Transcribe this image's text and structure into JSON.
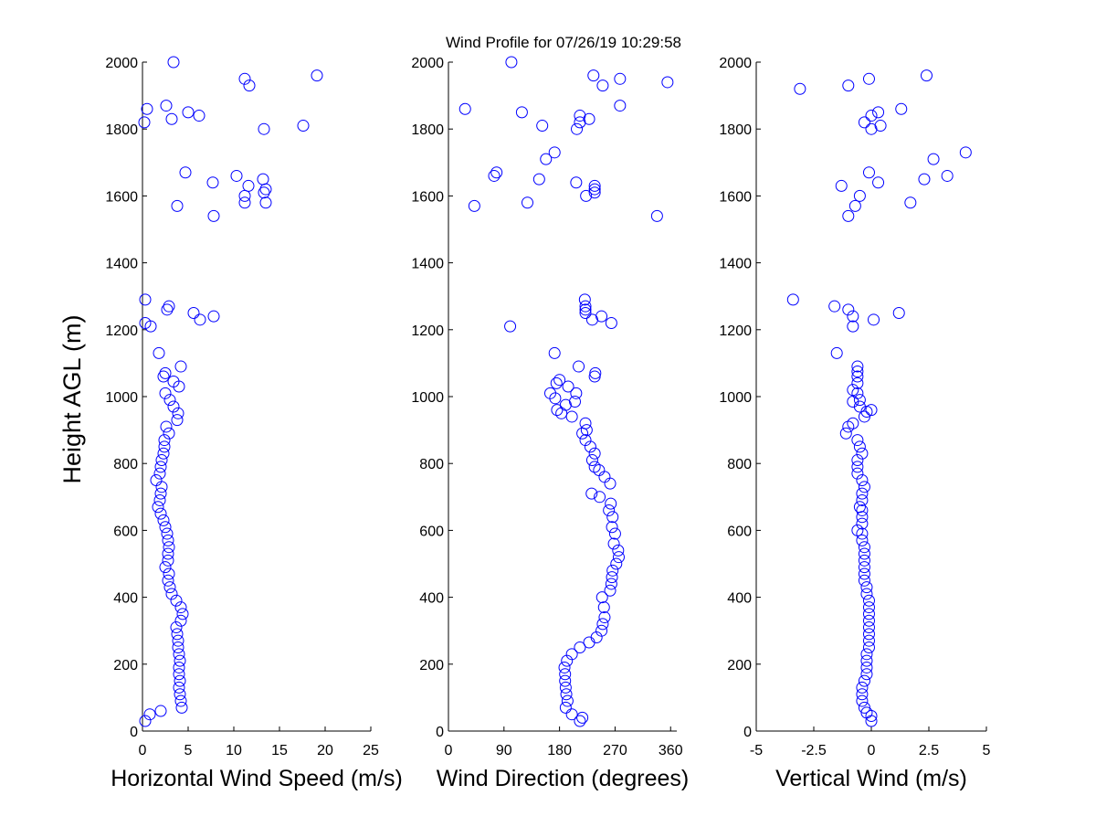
{
  "title": "Wind Profile for  07/26/19 10:29:58",
  "ylabel": "Height AGL (m)",
  "colors": {
    "marker": "#0000ff",
    "axis": "#000000",
    "background": "#ffffff"
  },
  "chart_data": [
    {
      "type": "scatter",
      "xlabel": "Horizontal Wind Speed (m/s)",
      "ylabel": "Height AGL (m)",
      "xlim": [
        0,
        25
      ],
      "ylim": [
        0,
        2000
      ],
      "xticks": [
        0,
        5,
        10,
        15,
        20,
        25
      ],
      "xtick_labels": [
        "0",
        "5",
        "10",
        "15",
        "20",
        "25"
      ],
      "yticks": [
        0,
        200,
        400,
        600,
        800,
        1000,
        1200,
        1400,
        1600,
        1800,
        2000
      ],
      "ytick_labels": [
        "0",
        "200",
        "400",
        "600",
        "800",
        "1000",
        "1200",
        "1400",
        "1600",
        "1800",
        "2000"
      ],
      "grid": false,
      "marker": "open-circle",
      "points": [
        [
          0.3,
          30
        ],
        [
          0.8,
          50
        ],
        [
          2.0,
          60
        ],
        [
          4.3,
          70
        ],
        [
          4.2,
          90
        ],
        [
          4.1,
          110
        ],
        [
          4.0,
          130
        ],
        [
          4.1,
          150
        ],
        [
          4.0,
          170
        ],
        [
          4.0,
          190
        ],
        [
          4.1,
          210
        ],
        [
          4.0,
          230
        ],
        [
          3.9,
          250
        ],
        [
          3.9,
          270
        ],
        [
          3.8,
          290
        ],
        [
          3.7,
          310
        ],
        [
          4.2,
          330
        ],
        [
          4.4,
          350
        ],
        [
          4.2,
          370
        ],
        [
          3.7,
          390
        ],
        [
          3.2,
          410
        ],
        [
          3.0,
          430
        ],
        [
          2.8,
          450
        ],
        [
          2.9,
          470
        ],
        [
          2.5,
          490
        ],
        [
          2.8,
          510
        ],
        [
          2.8,
          530
        ],
        [
          2.9,
          550
        ],
        [
          2.8,
          570
        ],
        [
          2.7,
          590
        ],
        [
          2.5,
          610
        ],
        [
          2.3,
          630
        ],
        [
          2.0,
          650
        ],
        [
          1.7,
          670
        ],
        [
          1.9,
          690
        ],
        [
          2.0,
          710
        ],
        [
          2.1,
          730
        ],
        [
          1.5,
          750
        ],
        [
          1.9,
          770
        ],
        [
          2.0,
          790
        ],
        [
          2.1,
          810
        ],
        [
          2.3,
          830
        ],
        [
          2.4,
          850
        ],
        [
          2.4,
          870
        ],
        [
          2.9,
          890
        ],
        [
          2.6,
          910
        ],
        [
          3.8,
          930
        ],
        [
          3.9,
          950
        ],
        [
          3.4,
          970
        ],
        [
          3.0,
          990
        ],
        [
          2.5,
          1010
        ],
        [
          4.0,
          1030
        ],
        [
          3.4,
          1045
        ],
        [
          2.3,
          1060
        ],
        [
          2.5,
          1070
        ],
        [
          4.2,
          1090
        ],
        [
          1.8,
          1130
        ],
        [
          0.3,
          1220
        ],
        [
          0.9,
          1210
        ],
        [
          6.3,
          1230
        ],
        [
          7.8,
          1240
        ],
        [
          5.6,
          1250
        ],
        [
          2.7,
          1260
        ],
        [
          2.9,
          1270
        ],
        [
          0.3,
          1290
        ],
        [
          7.8,
          1540
        ],
        [
          3.8,
          1570
        ],
        [
          11.2,
          1580
        ],
        [
          13.5,
          1580
        ],
        [
          11.2,
          1600
        ],
        [
          13.3,
          1610
        ],
        [
          13.5,
          1620
        ],
        [
          11.6,
          1630
        ],
        [
          7.7,
          1640
        ],
        [
          13.2,
          1650
        ],
        [
          10.3,
          1660
        ],
        [
          4.7,
          1670
        ],
        [
          13.3,
          1800
        ],
        [
          17.6,
          1810
        ],
        [
          0.2,
          1820
        ],
        [
          3.2,
          1830
        ],
        [
          6.2,
          1840
        ],
        [
          5.0,
          1850
        ],
        [
          0.5,
          1860
        ],
        [
          2.6,
          1870
        ],
        [
          11.7,
          1930
        ],
        [
          11.2,
          1950
        ],
        [
          19.1,
          1960
        ],
        [
          3.4,
          2000
        ]
      ]
    },
    {
      "type": "scatter",
      "xlabel": "Wind Direction (degrees)",
      "ylabel": "",
      "xlim": [
        0,
        370
      ],
      "ylim": [
        0,
        2000
      ],
      "xticks": [
        0,
        90,
        180,
        270,
        360
      ],
      "xtick_labels": [
        "0",
        "90",
        "180",
        "270",
        "360"
      ],
      "yticks": [
        0,
        200,
        400,
        600,
        800,
        1000,
        1200,
        1400,
        1600,
        1800,
        2000
      ],
      "ytick_labels": [
        "0",
        "200",
        "400",
        "600",
        "800",
        "1000",
        "1200",
        "1400",
        "1600",
        "1800",
        "2000"
      ],
      "grid": false,
      "marker": "open-circle",
      "points": [
        [
          213,
          30
        ],
        [
          217,
          40
        ],
        [
          200,
          50
        ],
        [
          190,
          70
        ],
        [
          193,
          90
        ],
        [
          191,
          110
        ],
        [
          190,
          130
        ],
        [
          189,
          150
        ],
        [
          189,
          170
        ],
        [
          188,
          190
        ],
        [
          192,
          210
        ],
        [
          200,
          230
        ],
        [
          213,
          250
        ],
        [
          228,
          265
        ],
        [
          240,
          280
        ],
        [
          248,
          300
        ],
        [
          250,
          320
        ],
        [
          253,
          340
        ],
        [
          252,
          370
        ],
        [
          249,
          400
        ],
        [
          262,
          420
        ],
        [
          264,
          440
        ],
        [
          265,
          460
        ],
        [
          266,
          480
        ],
        [
          272,
          500
        ],
        [
          276,
          520
        ],
        [
          275,
          540
        ],
        [
          268,
          560
        ],
        [
          270,
          590
        ],
        [
          265,
          610
        ],
        [
          266,
          640
        ],
        [
          260,
          660
        ],
        [
          263,
          680
        ],
        [
          245,
          700
        ],
        [
          232,
          710
        ],
        [
          262,
          740
        ],
        [
          253,
          760
        ],
        [
          244,
          780
        ],
        [
          237,
          790
        ],
        [
          233,
          810
        ],
        [
          237,
          830
        ],
        [
          230,
          850
        ],
        [
          222,
          870
        ],
        [
          217,
          890
        ],
        [
          224,
          900
        ],
        [
          222,
          920
        ],
        [
          200,
          940
        ],
        [
          183,
          950
        ],
        [
          176,
          960
        ],
        [
          190,
          975
        ],
        [
          205,
          985
        ],
        [
          173,
          995
        ],
        [
          207,
          1010
        ],
        [
          165,
          1010
        ],
        [
          194,
          1030
        ],
        [
          175,
          1040
        ],
        [
          180,
          1050
        ],
        [
          237,
          1060
        ],
        [
          238,
          1070
        ],
        [
          211,
          1090
        ],
        [
          172,
          1130
        ],
        [
          100,
          1210
        ],
        [
          264,
          1220
        ],
        [
          233,
          1230
        ],
        [
          248,
          1240
        ],
        [
          222,
          1250
        ],
        [
          222,
          1260
        ],
        [
          222,
          1270
        ],
        [
          221,
          1290
        ],
        [
          338,
          1540
        ],
        [
          42,
          1570
        ],
        [
          128,
          1580
        ],
        [
          223,
          1600
        ],
        [
          237,
          1610
        ],
        [
          237,
          1620
        ],
        [
          237,
          1630
        ],
        [
          207,
          1640
        ],
        [
          147,
          1650
        ],
        [
          74,
          1660
        ],
        [
          78,
          1670
        ],
        [
          158,
          1710
        ],
        [
          172,
          1730
        ],
        [
          208,
          1800
        ],
        [
          152,
          1810
        ],
        [
          213,
          1820
        ],
        [
          228,
          1830
        ],
        [
          213,
          1840
        ],
        [
          119,
          1850
        ],
        [
          27,
          1860
        ],
        [
          278,
          1870
        ],
        [
          250,
          1930
        ],
        [
          355,
          1940
        ],
        [
          278,
          1950
        ],
        [
          235,
          1960
        ],
        [
          102,
          2000
        ]
      ]
    },
    {
      "type": "scatter",
      "xlabel": "Vertical Wind (m/s)",
      "ylabel": "",
      "xlim": [
        -5,
        5
      ],
      "ylim": [
        0,
        2000
      ],
      "xticks": [
        -5,
        -2.5,
        0,
        2.5,
        5
      ],
      "xtick_labels": [
        "-5",
        "-2.5",
        "0",
        "2.5",
        "5"
      ],
      "yticks": [
        0,
        200,
        400,
        600,
        800,
        1000,
        1200,
        1400,
        1600,
        1800,
        2000
      ],
      "ytick_labels": [
        "0",
        "200",
        "400",
        "600",
        "800",
        "1000",
        "1200",
        "1400",
        "1600",
        "1800",
        "2000"
      ],
      "grid": false,
      "marker": "open-circle",
      "points": [
        [
          0.0,
          30
        ],
        [
          0.0,
          45
        ],
        [
          -0.2,
          55
        ],
        [
          -0.3,
          70
        ],
        [
          -0.4,
          90
        ],
        [
          -0.4,
          110
        ],
        [
          -0.4,
          130
        ],
        [
          -0.3,
          150
        ],
        [
          -0.2,
          170
        ],
        [
          -0.2,
          190
        ],
        [
          -0.2,
          210
        ],
        [
          -0.2,
          230
        ],
        [
          -0.1,
          250
        ],
        [
          -0.1,
          270
        ],
        [
          -0.1,
          290
        ],
        [
          -0.1,
          310
        ],
        [
          -0.1,
          330
        ],
        [
          -0.1,
          350
        ],
        [
          -0.1,
          370
        ],
        [
          -0.1,
          390
        ],
        [
          -0.2,
          410
        ],
        [
          -0.2,
          430
        ],
        [
          -0.3,
          450
        ],
        [
          -0.3,
          470
        ],
        [
          -0.3,
          490
        ],
        [
          -0.3,
          510
        ],
        [
          -0.3,
          530
        ],
        [
          -0.3,
          550
        ],
        [
          -0.4,
          570
        ],
        [
          -0.4,
          590
        ],
        [
          -0.6,
          600
        ],
        [
          -0.4,
          620
        ],
        [
          -0.4,
          640
        ],
        [
          -0.4,
          660
        ],
        [
          -0.5,
          670
        ],
        [
          -0.4,
          690
        ],
        [
          -0.4,
          710
        ],
        [
          -0.3,
          730
        ],
        [
          -0.4,
          750
        ],
        [
          -0.6,
          770
        ],
        [
          -0.6,
          790
        ],
        [
          -0.6,
          810
        ],
        [
          -0.4,
          830
        ],
        [
          -0.5,
          850
        ],
        [
          -0.6,
          870
        ],
        [
          -1.1,
          890
        ],
        [
          -1.0,
          910
        ],
        [
          -0.8,
          920
        ],
        [
          -0.3,
          940
        ],
        [
          -0.2,
          955
        ],
        [
          0.0,
          960
        ],
        [
          -0.5,
          970
        ],
        [
          -0.8,
          985
        ],
        [
          -0.5,
          990
        ],
        [
          -0.6,
          1010
        ],
        [
          -0.8,
          1020
        ],
        [
          -0.6,
          1040
        ],
        [
          -0.6,
          1060
        ],
        [
          -0.6,
          1075
        ],
        [
          -0.6,
          1090
        ],
        [
          -1.5,
          1130
        ],
        [
          -0.8,
          1210
        ],
        [
          0.1,
          1230
        ],
        [
          -0.8,
          1240
        ],
        [
          1.2,
          1250
        ],
        [
          -1.0,
          1260
        ],
        [
          -1.6,
          1270
        ],
        [
          -3.4,
          1290
        ],
        [
          -1.0,
          1540
        ],
        [
          -0.7,
          1570
        ],
        [
          1.7,
          1580
        ],
        [
          -0.5,
          1600
        ],
        [
          -1.3,
          1630
        ],
        [
          0.3,
          1640
        ],
        [
          2.3,
          1650
        ],
        [
          3.3,
          1660
        ],
        [
          -0.1,
          1670
        ],
        [
          2.7,
          1710
        ],
        [
          4.1,
          1730
        ],
        [
          0.0,
          1800
        ],
        [
          0.4,
          1810
        ],
        [
          -0.3,
          1820
        ],
        [
          0.0,
          1840
        ],
        [
          0.3,
          1850
        ],
        [
          1.3,
          1860
        ],
        [
          -1.0,
          1930
        ],
        [
          -3.1,
          1920
        ],
        [
          -0.1,
          1950
        ],
        [
          2.4,
          1960
        ]
      ]
    }
  ]
}
